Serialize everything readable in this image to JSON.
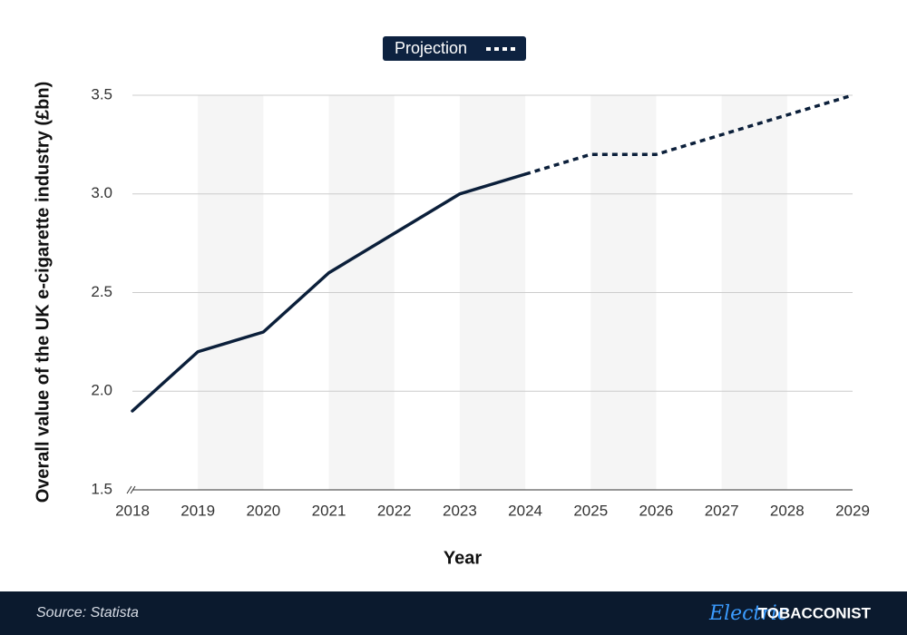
{
  "chart_data": {
    "type": "line",
    "x": [
      2018,
      2019,
      2020,
      2021,
      2022,
      2023,
      2024,
      2025,
      2026,
      2027,
      2028,
      2029
    ],
    "series": [
      {
        "color": "#0b1f3a",
        "values": [
          1.9,
          2.2,
          2.3,
          2.6,
          2.8,
          3.0,
          3.1,
          null,
          null,
          null,
          null,
          null
        ]
      },
      {
        "name": "Projection",
        "color": "#0b1f3a",
        "dashed": true,
        "values": [
          null,
          null,
          null,
          null,
          null,
          null,
          3.1,
          3.2,
          3.2,
          3.3,
          3.4,
          3.5
        ]
      }
    ],
    "ylim": [
      1.5,
      3.5
    ],
    "yticks": [
      1.5,
      {
        "value": 2,
        "label": "2.0"
      },
      2.5,
      {
        "value": 3,
        "label": "3.0"
      },
      3.5
    ],
    "y_label": "Overall value of the UK e-cigarette industry (£bn)",
    "x_label": "Year",
    "grid": true
  },
  "footer": {
    "source": "Source: Statista",
    "logo_script": "Electric",
    "logo_text": "TOBACCONIST"
  }
}
